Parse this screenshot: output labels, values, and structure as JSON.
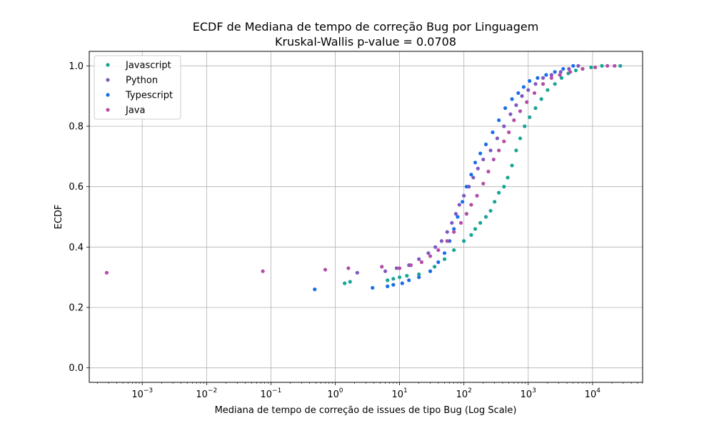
{
  "chart_data": {
    "type": "scatter",
    "title": "ECDF de Mediana de tempo de correção Bug por Linguagem",
    "subtitle": "Kruskal-Wallis p-value = 0.0708",
    "xlabel": "Mediana de tempo de correção de issues de tipo Bug (Log Scale)",
    "ylabel": "ECDF",
    "x_scale": "log",
    "xlim": [
      0.00015,
      60000
    ],
    "ylim": [
      -0.048,
      1.048
    ],
    "x_ticks": [
      {
        "exp": "−3",
        "value": 0.001
      },
      {
        "exp": "−2",
        "value": 0.01
      },
      {
        "exp": "−1",
        "value": 0.1
      },
      {
        "exp": "0",
        "value": 1
      },
      {
        "exp": "1",
        "value": 10
      },
      {
        "exp": "2",
        "value": 100
      },
      {
        "exp": "3",
        "value": 1000
      },
      {
        "exp": "4",
        "value": 10000
      }
    ],
    "x_tick_base": "10",
    "y_ticks": [
      {
        "label": "0.0",
        "value": 0.0
      },
      {
        "label": "0.2",
        "value": 0.2
      },
      {
        "label": "0.4",
        "value": 0.4
      },
      {
        "label": "0.6",
        "value": 0.6
      },
      {
        "label": "0.8",
        "value": 0.8
      },
      {
        "label": "1.0",
        "value": 1.0
      }
    ],
    "grid": true,
    "legend_position": "top-left",
    "series": [
      {
        "name": "Javascript",
        "color": "#16a596",
        "points": [
          [
            1.4,
            0.28
          ],
          [
            1.7,
            0.285
          ],
          [
            6.5,
            0.29
          ],
          [
            8,
            0.295
          ],
          [
            10,
            0.3
          ],
          [
            13,
            0.305
          ],
          [
            20,
            0.31
          ],
          [
            30,
            0.32
          ],
          [
            35,
            0.335
          ],
          [
            50,
            0.36
          ],
          [
            70,
            0.39
          ],
          [
            100,
            0.42
          ],
          [
            130,
            0.44
          ],
          [
            150,
            0.46
          ],
          [
            180,
            0.48
          ],
          [
            220,
            0.5
          ],
          [
            260,
            0.52
          ],
          [
            300,
            0.55
          ],
          [
            350,
            0.58
          ],
          [
            420,
            0.6
          ],
          [
            480,
            0.63
          ],
          [
            560,
            0.67
          ],
          [
            650,
            0.72
          ],
          [
            750,
            0.76
          ],
          [
            880,
            0.8
          ],
          [
            1050,
            0.83
          ],
          [
            1300,
            0.86
          ],
          [
            1600,
            0.89
          ],
          [
            2000,
            0.92
          ],
          [
            2600,
            0.94
          ],
          [
            3300,
            0.96
          ],
          [
            4200,
            0.975
          ],
          [
            5500,
            0.985
          ],
          [
            7000,
            0.99
          ],
          [
            9500,
            0.995
          ],
          [
            14000,
            1.0
          ],
          [
            27000,
            1.0
          ]
        ]
      },
      {
        "name": "Python",
        "color": "#7e57c2",
        "points": [
          [
            2.2,
            0.315
          ],
          [
            6,
            0.32
          ],
          [
            9,
            0.33
          ],
          [
            14,
            0.34
          ],
          [
            20,
            0.36
          ],
          [
            28,
            0.38
          ],
          [
            36,
            0.4
          ],
          [
            45,
            0.42
          ],
          [
            55,
            0.45
          ],
          [
            65,
            0.48
          ],
          [
            75,
            0.51
          ],
          [
            85,
            0.54
          ],
          [
            100,
            0.57
          ],
          [
            120,
            0.6
          ],
          [
            140,
            0.63
          ],
          [
            165,
            0.66
          ],
          [
            200,
            0.69
          ],
          [
            260,
            0.72
          ],
          [
            330,
            0.76
          ],
          [
            420,
            0.8
          ],
          [
            530,
            0.84
          ],
          [
            650,
            0.87
          ],
          [
            800,
            0.9
          ],
          [
            1000,
            0.92
          ],
          [
            1300,
            0.94
          ],
          [
            1700,
            0.96
          ],
          [
            2300,
            0.97
          ],
          [
            3200,
            0.98
          ],
          [
            4300,
            0.99
          ],
          [
            6000,
            1.0
          ]
        ]
      },
      {
        "name": "Typescript",
        "color": "#1a6ee8",
        "points": [
          [
            0.48,
            0.26
          ],
          [
            3.8,
            0.265
          ],
          [
            6.5,
            0.27
          ],
          [
            8,
            0.275
          ],
          [
            11,
            0.28
          ],
          [
            14,
            0.29
          ],
          [
            20,
            0.3
          ],
          [
            30,
            0.32
          ],
          [
            40,
            0.35
          ],
          [
            50,
            0.38
          ],
          [
            60,
            0.42
          ],
          [
            70,
            0.46
          ],
          [
            80,
            0.5
          ],
          [
            95,
            0.55
          ],
          [
            110,
            0.6
          ],
          [
            130,
            0.64
          ],
          [
            150,
            0.68
          ],
          [
            180,
            0.71
          ],
          [
            220,
            0.74
          ],
          [
            280,
            0.78
          ],
          [
            350,
            0.82
          ],
          [
            440,
            0.86
          ],
          [
            560,
            0.89
          ],
          [
            700,
            0.91
          ],
          [
            850,
            0.93
          ],
          [
            1050,
            0.95
          ],
          [
            1400,
            0.96
          ],
          [
            1900,
            0.97
          ],
          [
            2600,
            0.98
          ],
          [
            3500,
            0.99
          ],
          [
            5000,
            1.0
          ]
        ]
      },
      {
        "name": "Java",
        "color": "#b34ca6",
        "points": [
          [
            0.00028,
            0.315
          ],
          [
            0.075,
            0.32
          ],
          [
            0.7,
            0.325
          ],
          [
            1.6,
            0.33
          ],
          [
            5.3,
            0.335
          ],
          [
            10,
            0.33
          ],
          [
            15,
            0.34
          ],
          [
            22,
            0.35
          ],
          [
            30,
            0.37
          ],
          [
            40,
            0.39
          ],
          [
            55,
            0.42
          ],
          [
            70,
            0.45
          ],
          [
            90,
            0.48
          ],
          [
            110,
            0.51
          ],
          [
            130,
            0.54
          ],
          [
            160,
            0.57
          ],
          [
            200,
            0.61
          ],
          [
            240,
            0.65
          ],
          [
            290,
            0.69
          ],
          [
            350,
            0.72
          ],
          [
            420,
            0.75
          ],
          [
            500,
            0.78
          ],
          [
            600,
            0.82
          ],
          [
            750,
            0.85
          ],
          [
            950,
            0.88
          ],
          [
            1250,
            0.91
          ],
          [
            1700,
            0.94
          ],
          [
            2300,
            0.96
          ],
          [
            3100,
            0.97
          ],
          [
            4500,
            0.98
          ],
          [
            7000,
            0.99
          ],
          [
            11000,
            0.995
          ],
          [
            17000,
            1.0
          ],
          [
            22000,
            1.0
          ]
        ]
      }
    ]
  }
}
